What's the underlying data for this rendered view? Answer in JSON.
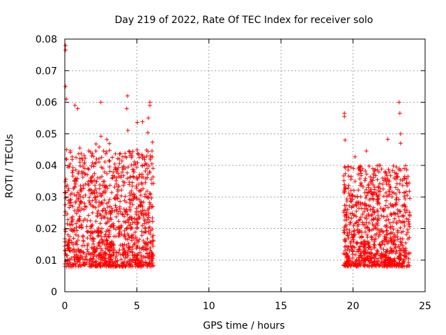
{
  "chart_data": {
    "type": "scatter",
    "title": "Day 219 of 2022, Rate Of TEC Index for receiver solo",
    "xlabel": "GPS time / hours",
    "ylabel": "ROTI / TECUs",
    "xlim": [
      0,
      25
    ],
    "ylim": [
      0,
      0.08
    ],
    "x_ticks": [
      "0",
      "5",
      "10",
      "15",
      "20",
      "25"
    ],
    "y_ticks": [
      "0",
      "0.01",
      "0.02",
      "0.03",
      "0.04",
      "0.05",
      "0.06",
      "0.07",
      "0.08"
    ],
    "grid": true,
    "marker": "+",
    "point_color": "#ff0000",
    "segments": [
      {
        "x_start": 0.0,
        "x_end": 6.15,
        "y_typical_min": 0.008,
        "y_typical_max": 0.045,
        "y_peak": 0.078
      },
      {
        "x_start": 19.35,
        "x_end": 23.95,
        "y_typical_min": 0.008,
        "y_typical_max": 0.04,
        "y_peak": 0.06
      }
    ],
    "peaks": [
      {
        "x": 0.05,
        "y": 0.078
      },
      {
        "x": 0.05,
        "y": 0.0765
      },
      {
        "x": 0.05,
        "y": 0.065
      },
      {
        "x": 0.1,
        "y": 0.061
      },
      {
        "x": 0.7,
        "y": 0.059
      },
      {
        "x": 0.9,
        "y": 0.058
      },
      {
        "x": 2.5,
        "y": 0.06
      },
      {
        "x": 4.35,
        "y": 0.062
      },
      {
        "x": 4.3,
        "y": 0.058
      },
      {
        "x": 5.9,
        "y": 0.06
      },
      {
        "x": 5.9,
        "y": 0.059
      },
      {
        "x": 5.8,
        "y": 0.055
      },
      {
        "x": 19.4,
        "y": 0.0565
      },
      {
        "x": 19.4,
        "y": 0.0555
      },
      {
        "x": 19.45,
        "y": 0.048
      },
      {
        "x": 23.2,
        "y": 0.06
      },
      {
        "x": 23.25,
        "y": 0.0565
      },
      {
        "x": 23.3,
        "y": 0.05
      },
      {
        "x": 23.3,
        "y": 0.047
      }
    ]
  }
}
